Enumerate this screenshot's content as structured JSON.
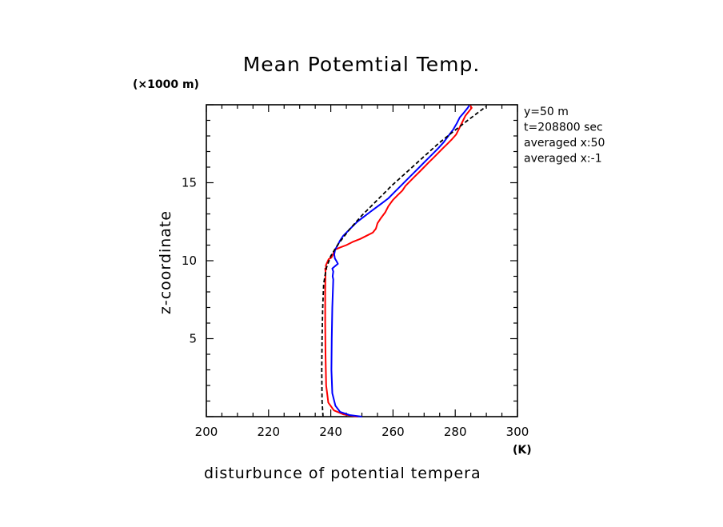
{
  "chart_data": {
    "type": "line",
    "title": "Mean Potemtial Temp.",
    "xlabel": "disturbunce of potential tempera",
    "ylabel": "z-coordinate",
    "x_unit": "(K)",
    "y_unit": "(×1000 m)",
    "xlim": [
      200,
      300
    ],
    "ylim": [
      0,
      20
    ],
    "x_ticks": [
      200,
      220,
      240,
      260,
      280,
      300
    ],
    "y_ticks": [
      5,
      10,
      15
    ],
    "info_lines": [
      "y=50 m",
      "t=208800 sec",
      "averaged  x:50",
      "averaged  x:-1"
    ],
    "series": [
      {
        "color": "#ff0000",
        "points": [
          [
            248.5,
            0.0
          ],
          [
            244,
            0.15
          ],
          [
            241,
            0.4
          ],
          [
            239.2,
            0.9
          ],
          [
            238.5,
            2
          ],
          [
            238.3,
            4
          ],
          [
            238.2,
            6
          ],
          [
            238.2,
            8
          ],
          [
            238.3,
            9.3
          ],
          [
            238.2,
            9.5
          ],
          [
            238.6,
            9.45
          ],
          [
            238.4,
            9.7
          ],
          [
            239.3,
            10.1
          ],
          [
            240.2,
            10.2
          ],
          [
            240.6,
            10.35
          ],
          [
            241.2,
            10.7
          ],
          [
            243,
            10.85
          ],
          [
            245,
            11
          ],
          [
            247,
            11.2
          ],
          [
            249.5,
            11.4
          ],
          [
            251.5,
            11.6
          ],
          [
            253.5,
            11.8
          ],
          [
            254.5,
            12.05
          ],
          [
            255,
            12.4
          ],
          [
            256,
            12.7
          ],
          [
            257.5,
            13.1
          ],
          [
            258.5,
            13.5
          ],
          [
            260,
            13.9
          ],
          [
            261.5,
            14.2
          ],
          [
            263,
            14.5
          ],
          [
            264,
            14.8
          ],
          [
            265.5,
            15.1
          ],
          [
            267,
            15.4
          ],
          [
            268.5,
            15.7
          ],
          [
            270,
            16.0
          ],
          [
            271.5,
            16.3
          ],
          [
            273,
            16.6
          ],
          [
            274.5,
            16.9
          ],
          [
            276,
            17.2
          ],
          [
            277.5,
            17.5
          ],
          [
            279,
            17.8
          ],
          [
            280.3,
            18.1
          ],
          [
            281.3,
            18.5
          ],
          [
            282.3,
            18.9
          ],
          [
            283.3,
            19.3
          ],
          [
            284.5,
            19.6
          ],
          [
            285.3,
            19.8
          ],
          [
            284.8,
            19.95
          ]
        ]
      },
      {
        "color": "#0000ff",
        "points": [
          [
            250,
            0.0
          ],
          [
            246,
            0.1
          ],
          [
            243,
            0.3
          ],
          [
            241.5,
            0.7
          ],
          [
            240.5,
            1.5
          ],
          [
            240.2,
            3
          ],
          [
            240.3,
            5
          ],
          [
            240.5,
            7
          ],
          [
            240.8,
            8.8
          ],
          [
            240.6,
            9.0
          ],
          [
            240.8,
            9.3
          ],
          [
            240.5,
            9.5
          ],
          [
            241.4,
            9.65
          ],
          [
            242.3,
            9.8
          ],
          [
            241.9,
            9.95
          ],
          [
            241.3,
            10.15
          ],
          [
            241.1,
            10.4
          ],
          [
            241.4,
            10.7
          ],
          [
            242.2,
            11.0
          ],
          [
            243,
            11.3
          ],
          [
            244,
            11.6
          ],
          [
            245.5,
            11.9
          ],
          [
            247,
            12.2
          ],
          [
            248.5,
            12.5
          ],
          [
            250.5,
            12.8
          ],
          [
            252.5,
            13.1
          ],
          [
            254.5,
            13.4
          ],
          [
            256.5,
            13.7
          ],
          [
            258.5,
            14.0
          ],
          [
            260.5,
            14.4
          ],
          [
            262.5,
            14.8
          ],
          [
            264.5,
            15.2
          ],
          [
            266.5,
            15.6
          ],
          [
            268.5,
            16.0
          ],
          [
            270.5,
            16.4
          ],
          [
            272.5,
            16.8
          ],
          [
            274.5,
            17.2
          ],
          [
            276.3,
            17.6
          ],
          [
            277.8,
            18.0
          ],
          [
            279.3,
            18.4
          ],
          [
            280.5,
            18.8
          ],
          [
            281.5,
            19.2
          ],
          [
            282.8,
            19.5
          ],
          [
            284,
            19.8
          ],
          [
            284.5,
            19.95
          ]
        ]
      },
      {
        "color": "#000000",
        "dashed": true,
        "points": [
          [
            237.5,
            0.0
          ],
          [
            237.2,
            1
          ],
          [
            237.1,
            3
          ],
          [
            237.2,
            5
          ],
          [
            237.4,
            7
          ],
          [
            237.7,
            8.5
          ],
          [
            238.5,
            9.5
          ],
          [
            240,
            10.3
          ],
          [
            242.5,
            11.1
          ],
          [
            246,
            12.0
          ],
          [
            250,
            12.9
          ],
          [
            254.5,
            13.8
          ],
          [
            259.5,
            14.8
          ],
          [
            264.5,
            15.7
          ],
          [
            269.5,
            16.6
          ],
          [
            274.5,
            17.5
          ],
          [
            279.5,
            18.3
          ],
          [
            284,
            19.0
          ],
          [
            288,
            19.6
          ],
          [
            290,
            19.9
          ]
        ]
      }
    ]
  }
}
